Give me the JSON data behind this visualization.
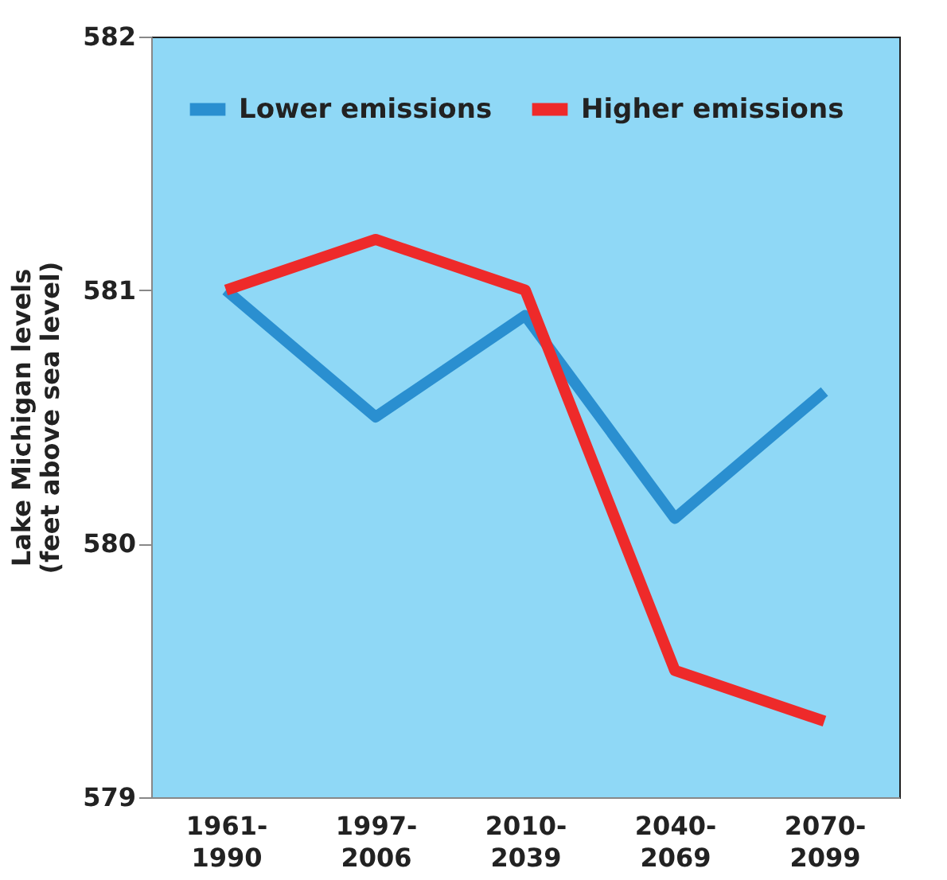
{
  "chart_data": {
    "type": "line",
    "ylabel": "Lake Michigan levels\n(feet above sea level)",
    "categories": [
      "1961-\n1990",
      "1997-\n2006",
      "2010-\n2039",
      "2040-\n2069",
      "2070-\n2099"
    ],
    "series": [
      {
        "name": "Lower emissions",
        "color": "#2a8fd0",
        "values": [
          581.0,
          580.5,
          580.9,
          580.1,
          580.6
        ]
      },
      {
        "name": "Higher emissions",
        "color": "#ee2a2a",
        "values": [
          581.0,
          581.2,
          581.0,
          579.5,
          579.3
        ]
      }
    ],
    "ylim": [
      579,
      582
    ],
    "yticks": [
      579,
      580,
      581,
      582
    ],
    "grid": false,
    "legend": "top",
    "marker": "none",
    "line_style": "solid"
  }
}
